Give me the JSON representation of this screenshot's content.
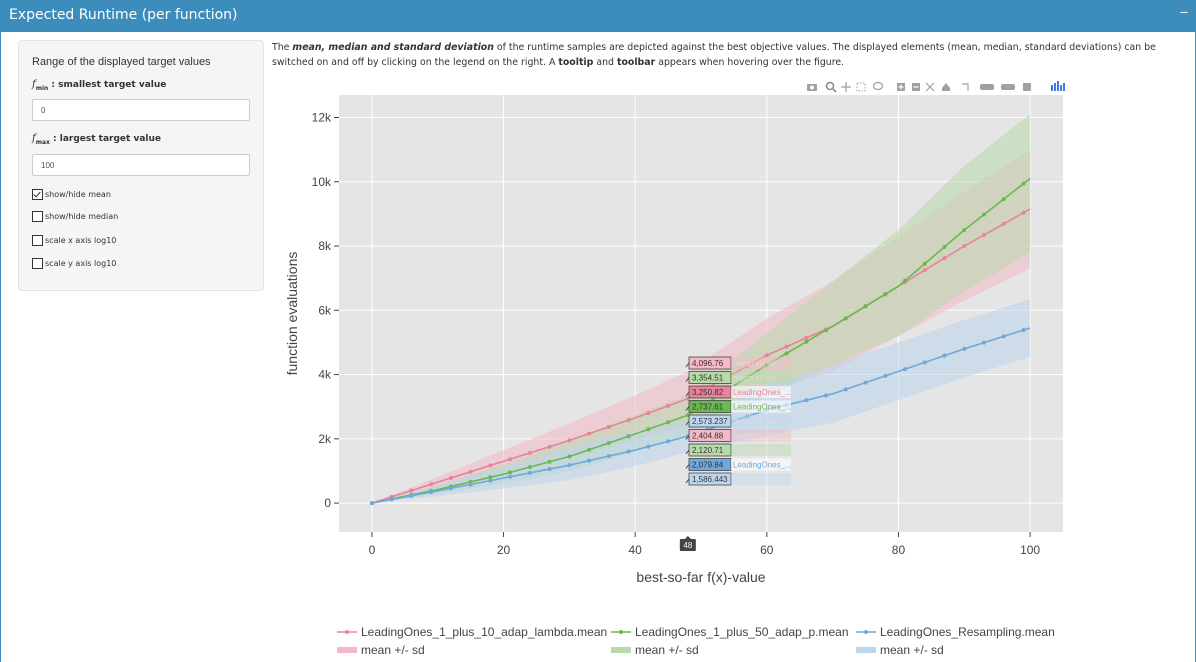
{
  "panel": {
    "title": "Expected Runtime (per function)",
    "collapse_label": "−"
  },
  "sidebar": {
    "range_title": "Range of the displayed target values",
    "fmin_var": "f",
    "fmin_sub": "min",
    "fmin_label": " : smallest target value",
    "fmin_value": "0",
    "fmax_var": "f",
    "fmax_sub": "max",
    "fmax_label": " : largest target value",
    "fmax_value": "100",
    "checkboxes": [
      {
        "label": "show/hide mean",
        "checked": true
      },
      {
        "label": "show/hide median",
        "checked": false
      },
      {
        "label": "scale x axis log10",
        "checked": false
      },
      {
        "label": "scale y axis log10",
        "checked": false
      }
    ]
  },
  "description": {
    "p1": "The ",
    "b1": "mean, median and standard deviation",
    "p2": " of the runtime samples are depicted against the best objective values. The displayed elements (mean, median, standard deviations) can be switched on and off by clicking on the legend on the right. A ",
    "b2": "tooltip",
    "p3": " and ",
    "b3": "toolbar",
    "p4": " appears when hovering over the figure."
  },
  "chart_data": {
    "type": "line",
    "title": "",
    "xlabel": "best-so-far f(x)-value",
    "ylabel": "function evaluations",
    "xlim": [
      -5,
      105
    ],
    "ylim": [
      -900,
      12700
    ],
    "xticks": [
      0,
      20,
      40,
      60,
      80,
      100
    ],
    "xtick_labels": [
      "0",
      "20",
      "40",
      "60",
      "80",
      "100"
    ],
    "yticks": [
      0,
      2000,
      4000,
      6000,
      8000,
      10000,
      12000
    ],
    "ytick_labels": [
      "0",
      "2k",
      "4k",
      "6k",
      "8k",
      "10k",
      "12k"
    ],
    "hover_x": 48,
    "hover_label": "48",
    "series": [
      {
        "name": "LeadingOnes_1_plus_10_adap_lambda.mean",
        "band_name": "mean +/- sd",
        "color": "#e8839c",
        "band_color": "#f4b9c6",
        "x": [
          0,
          10,
          20,
          30,
          40,
          48,
          60,
          70,
          80,
          90,
          100
        ],
        "values": [
          0,
          650,
          1300,
          1950,
          2650,
          3250,
          4600,
          5500,
          6750,
          8000,
          9150
        ],
        "upper": [
          0,
          820,
          1650,
          2480,
          3350,
          4097,
          5750,
          6900,
          8300,
          9700,
          11000
        ],
        "lower": [
          0,
          480,
          950,
          1420,
          1950,
          2405,
          3450,
          4100,
          5200,
          6300,
          7300
        ]
      },
      {
        "name": "LeadingOnes_1_plus_50_adap_p.mean",
        "band_name": "mean +/- sd",
        "color": "#6ab84f",
        "band_color": "#b8d9a9",
        "x": [
          0,
          10,
          20,
          30,
          40,
          48,
          60,
          70,
          80,
          90,
          100
        ],
        "values": [
          0,
          420,
          900,
          1450,
          2150,
          2738,
          4300,
          5500,
          6750,
          8500,
          10100
        ],
        "upper": [
          0,
          560,
          1200,
          1950,
          2750,
          3355,
          5300,
          6900,
          8500,
          10500,
          12100
        ],
        "lower": [
          0,
          300,
          620,
          1000,
          1600,
          2121,
          3300,
          4300,
          5200,
          6600,
          7800
        ]
      },
      {
        "name": "LeadingOnes_Resampling.mean",
        "band_name": "mean +/- sd",
        "color": "#6fa8dc",
        "band_color": "#bcd6ee",
        "x": [
          0,
          10,
          20,
          30,
          40,
          48,
          60,
          70,
          80,
          90,
          100
        ],
        "values": [
          0,
          380,
          780,
          1180,
          1650,
          2080,
          2900,
          3400,
          4100,
          4800,
          5450
        ],
        "upper": [
          0,
          560,
          1150,
          1750,
          2250,
          2573,
          3700,
          4300,
          5000,
          5700,
          6350
        ],
        "lower": [
          0,
          220,
          450,
          720,
          1150,
          1586,
          2100,
          2500,
          3200,
          3900,
          4550
        ]
      }
    ],
    "tooltips": [
      {
        "value": "4,096.76",
        "text": "mean +/- sd",
        "series": 0,
        "kind": "band"
      },
      {
        "value": "3,354.51",
        "text": "mean +/- sd",
        "series": 1,
        "kind": "band"
      },
      {
        "value": "3,250.82",
        "text": "LeadingOnes_...",
        "series": 0,
        "kind": "mean"
      },
      {
        "value": "2,737.61",
        "text": "LeadingOnes_...",
        "series": 1,
        "kind": "mean"
      },
      {
        "value": "2,573.237",
        "text": "mean +/- sd",
        "series": 2,
        "kind": "band"
      },
      {
        "value": "2,404.88",
        "text": "mean +/- sd",
        "series": 0,
        "kind": "band"
      },
      {
        "value": "2,120.71",
        "text": "mean +/- sd",
        "series": 1,
        "kind": "band"
      },
      {
        "value": "2,079.84",
        "text": "LeadingOnes_...",
        "series": 2,
        "kind": "mean"
      },
      {
        "value": "1,586.443",
        "text": "mean +/- sd",
        "series": 2,
        "kind": "band"
      }
    ]
  },
  "toolbar": {
    "icons": [
      "camera-icon",
      "zoom-icon",
      "pan-icon",
      "box-select-icon",
      "lasso-icon",
      "zoom-in-icon",
      "zoom-out-icon",
      "autoscale-icon",
      "reset-axes-icon",
      "spike-lines-icon",
      "hover-closest-icon",
      "hover-compare-icon",
      "toggle-legend-icon",
      "plotly-logo-icon"
    ]
  }
}
